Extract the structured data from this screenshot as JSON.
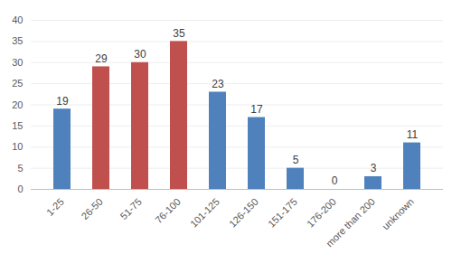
{
  "chart_data": {
    "type": "bar",
    "categories": [
      "1-25",
      "26-50",
      "51-75",
      "76-100",
      "101-125",
      "126-150",
      "151-175",
      "176-200",
      "more than 200",
      "unknown"
    ],
    "values": [
      19,
      29,
      30,
      35,
      23,
      17,
      5,
      0,
      3,
      11
    ],
    "colors": [
      "#4f81bd",
      "#c0504d",
      "#c0504d",
      "#c0504d",
      "#4f81bd",
      "#4f81bd",
      "#4f81bd",
      "#4f81bd",
      "#4f81bd",
      "#4f81bd"
    ],
    "ylim": [
      0,
      40
    ],
    "yticks": [
      0,
      5,
      10,
      15,
      20,
      25,
      30,
      35,
      40
    ],
    "grid": true,
    "data_labels": true
  }
}
